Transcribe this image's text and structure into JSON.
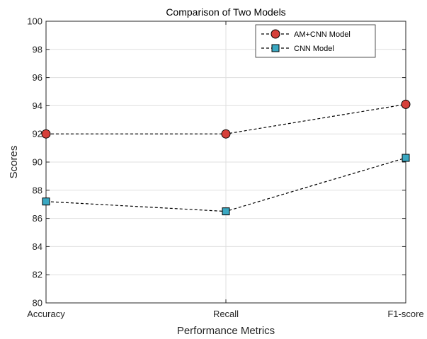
{
  "chart_data": {
    "type": "line",
    "title": "Comparison of Two Models",
    "xlabel": "Performance Metrics",
    "ylabel": "Scores",
    "categories": [
      "Accuracy",
      "Recall",
      "F1-score"
    ],
    "ylim": [
      80,
      100
    ],
    "yticks": [
      80,
      82,
      84,
      86,
      88,
      90,
      92,
      94,
      96,
      98,
      100
    ],
    "grid": true,
    "legend_position": "top-right",
    "series": [
      {
        "name": "AM+CNN Model",
        "values": [
          92.0,
          92.0,
          94.1
        ],
        "color": "#d6403a",
        "marker": "circle",
        "line_style": "dashed"
      },
      {
        "name": "CNN Model",
        "values": [
          87.2,
          86.5,
          90.3
        ],
        "color": "#3aa8c2",
        "marker": "square",
        "line_style": "dashed"
      }
    ]
  }
}
